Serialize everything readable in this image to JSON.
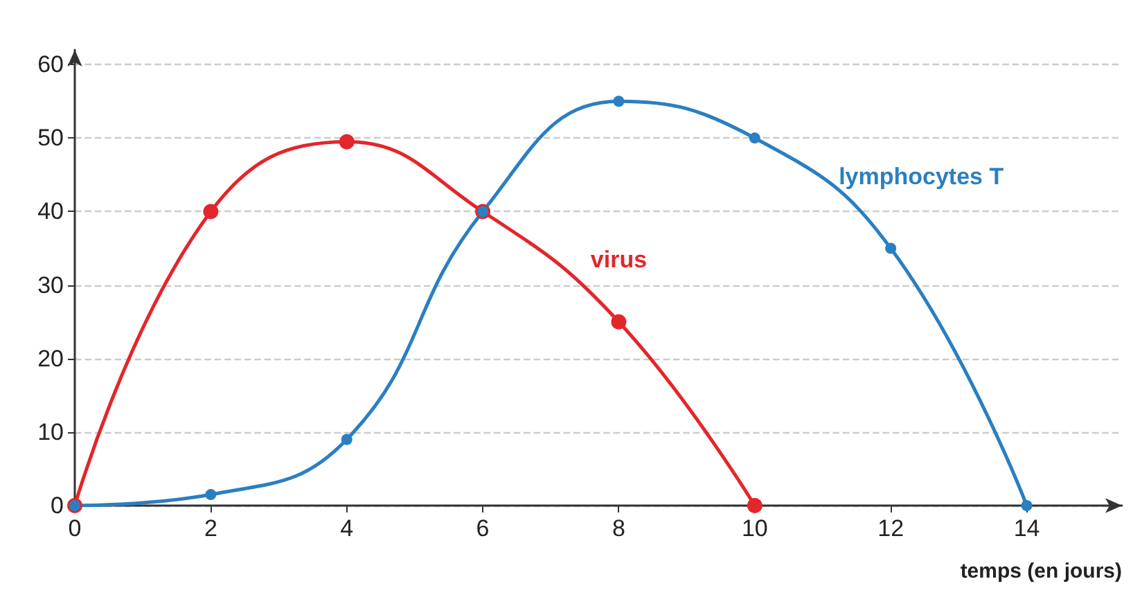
{
  "chart_data": {
    "type": "line",
    "xlabel": "temps (en jours)",
    "xlim": [
      0,
      15.4
    ],
    "xticks": [
      0,
      2,
      4,
      6,
      8,
      10,
      12,
      14
    ],
    "ylim": [
      0,
      62
    ],
    "yticks": [
      0,
      10,
      20,
      30,
      40,
      50,
      60
    ],
    "series": [
      {
        "name": "virus",
        "color": "#e3262b",
        "x": [
          0,
          2,
          4,
          6,
          8,
          10
        ],
        "values": [
          0,
          40,
          49.5,
          40,
          25,
          0
        ]
      },
      {
        "name": "lymphocytes T",
        "color": "#2a7fc1",
        "x": [
          0,
          2,
          4,
          6,
          8,
          10,
          12,
          14
        ],
        "values": [
          0,
          1.5,
          9,
          40,
          55,
          50,
          35,
          0
        ]
      }
    ],
    "grid": "y",
    "legend": false,
    "marker": "circle",
    "line_style": "solid"
  }
}
